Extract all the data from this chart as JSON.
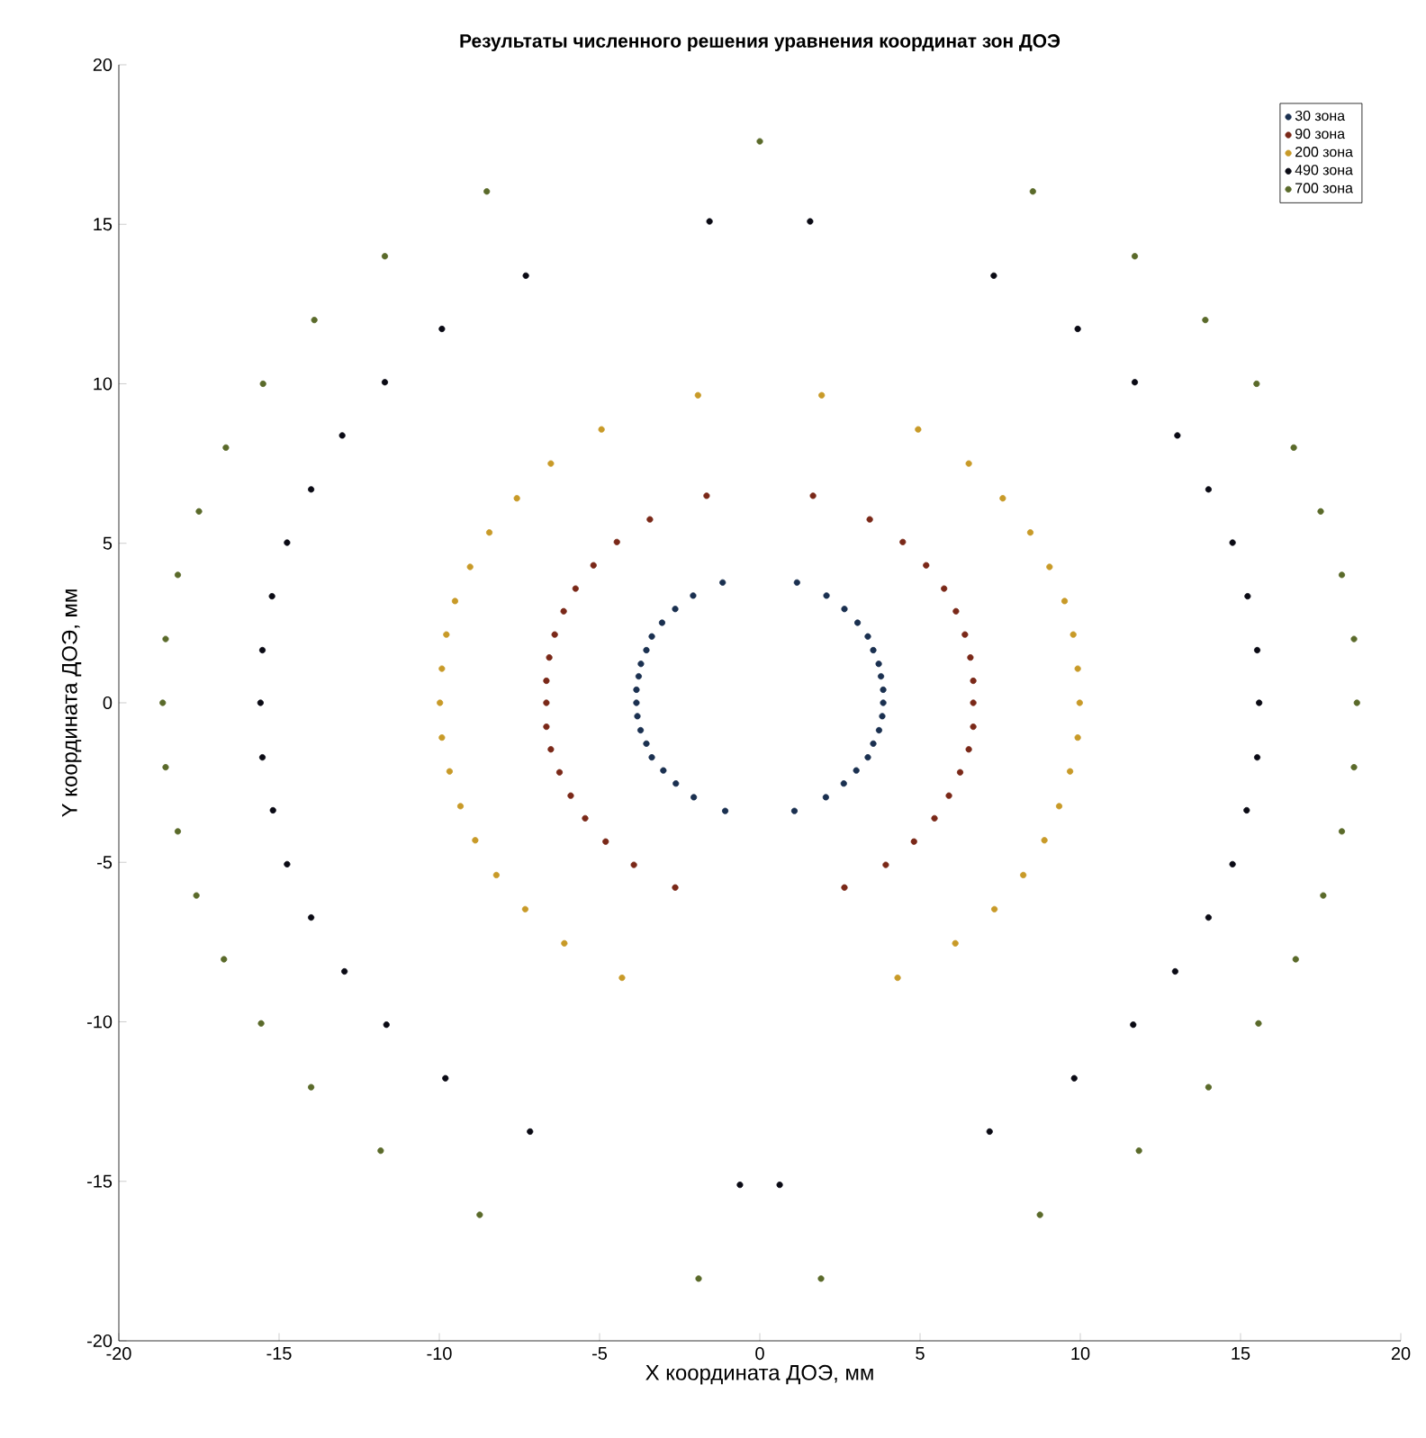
{
  "chart_data": {
    "type": "scatter",
    "title": "Результаты численного решения уравнения координат зон ДОЭ",
    "xlabel": "X координата ДОЭ, мм",
    "ylabel": "Y координата ДОЭ, мм",
    "xlim": [
      -20,
      20
    ],
    "ylim": [
      -20,
      20
    ],
    "xticks": [
      -20,
      -15,
      -10,
      -5,
      0,
      5,
      10,
      15,
      20
    ],
    "yticks": [
      -20,
      -15,
      -10,
      -5,
      0,
      5,
      10,
      15,
      20
    ],
    "legend": "top right",
    "marker": "circle",
    "series": [
      {
        "name": "30 зона",
        "color": "#1a3050",
        "x": [
          -1.16,
          -2.08,
          -2.64,
          -3.05,
          -3.37,
          -3.54,
          -3.71,
          -3.78,
          -3.85,
          -3.85,
          -3.82,
          -3.72,
          -3.54,
          -3.37,
          -3.01,
          -2.62,
          -2.06,
          -1.08,
          1.16,
          2.08,
          2.64,
          3.05,
          3.37,
          3.54,
          3.71,
          3.78,
          3.85,
          3.85,
          3.82,
          3.72,
          3.54,
          3.37,
          3.01,
          2.62,
          2.06,
          1.08
        ],
        "values": [
          3.77,
          3.36,
          2.94,
          2.51,
          2.08,
          1.65,
          1.22,
          0.83,
          0.41,
          0,
          -0.42,
          -0.86,
          -1.28,
          -1.71,
          -2.12,
          -2.53,
          -2.96,
          -3.39,
          3.77,
          3.36,
          2.94,
          2.51,
          2.08,
          1.65,
          1.22,
          0.83,
          0.41,
          0,
          -0.42,
          -0.86,
          -1.28,
          -1.71,
          -2.12,
          -2.53,
          -2.96,
          -3.39
        ]
      },
      {
        "name": "90 зона",
        "color": "#7a2818",
        "x": [
          -1.66,
          -3.43,
          -4.46,
          -5.19,
          -5.75,
          -6.12,
          -6.4,
          -6.57,
          -6.66,
          -6.66,
          -6.66,
          -6.52,
          -6.25,
          -5.9,
          -5.45,
          -4.81,
          -3.93,
          -2.64,
          1.66,
          3.43,
          4.46,
          5.19,
          5.75,
          6.12,
          6.4,
          6.57,
          6.66,
          6.66,
          6.66,
          6.52,
          6.25,
          5.9,
          5.45,
          4.81,
          3.93,
          2.64
        ],
        "values": [
          6.49,
          5.75,
          5.04,
          4.31,
          3.58,
          2.87,
          2.14,
          1.42,
          0.69,
          0,
          -0.75,
          -1.46,
          -2.18,
          -2.91,
          -3.62,
          -4.35,
          -5.08,
          -5.79,
          6.49,
          5.75,
          5.04,
          4.31,
          3.58,
          2.87,
          2.14,
          1.42,
          0.69,
          0,
          -0.75,
          -1.46,
          -2.18,
          -2.91,
          -3.62,
          -4.35,
          -5.08,
          -5.79
        ]
      },
      {
        "name": "200 зона",
        "color": "#c89a28",
        "x": [
          -1.93,
          -4.94,
          -6.52,
          -7.58,
          -8.44,
          -9.04,
          -9.51,
          -9.78,
          -9.92,
          -9.98,
          -9.92,
          -9.68,
          -9.34,
          -8.88,
          -8.22,
          -7.32,
          -6.1,
          -4.3,
          1.93,
          4.94,
          6.52,
          7.58,
          8.44,
          9.04,
          9.51,
          9.78,
          9.92,
          9.98,
          9.92,
          9.68,
          9.34,
          8.88,
          8.22,
          7.32,
          6.1,
          4.3
        ],
        "values": [
          9.64,
          8.57,
          7.5,
          6.41,
          5.34,
          4.26,
          3.19,
          2.14,
          1.07,
          0,
          -1.09,
          -2.15,
          -3.24,
          -4.31,
          -5.4,
          -6.47,
          -7.54,
          -8.62,
          9.64,
          8.57,
          7.5,
          6.41,
          5.34,
          4.26,
          3.19,
          2.14,
          1.07,
          0,
          -1.09,
          -2.15,
          -3.24,
          -4.31,
          -5.4,
          -6.47,
          -7.54,
          -8.62
        ]
      },
      {
        "name": "490 зона",
        "color": "#0a0a14",
        "x": [
          -1.57,
          -7.3,
          -9.92,
          -11.7,
          -13.03,
          -14.0,
          -14.75,
          -15.22,
          -15.52,
          -15.58,
          -15.52,
          -15.19,
          -14.75,
          -14.0,
          -12.96,
          -11.65,
          -9.81,
          -7.17,
          -0.62,
          1.57,
          7.3,
          9.92,
          11.7,
          13.03,
          14.0,
          14.75,
          15.22,
          15.52,
          15.58,
          15.52,
          15.19,
          14.75,
          14.0,
          12.96,
          11.65,
          9.81,
          7.17,
          0.62
        ],
        "values": [
          15.09,
          13.39,
          11.72,
          10.05,
          8.38,
          6.69,
          5.02,
          3.34,
          1.65,
          0,
          -1.71,
          -3.37,
          -5.06,
          -6.73,
          -8.42,
          -10.09,
          -11.77,
          -13.44,
          -15.11,
          15.09,
          13.39,
          11.72,
          10.05,
          8.38,
          6.69,
          5.02,
          3.34,
          1.65,
          0,
          -1.71,
          -3.37,
          -5.06,
          -6.73,
          -8.42,
          -10.09,
          -11.77,
          -13.44,
          -15.11
        ]
      },
      {
        "name": "700 зона",
        "color": "#5a6a2a",
        "x": [
          0,
          -8.52,
          -11.7,
          -13.9,
          -15.5,
          -16.66,
          -17.5,
          -18.16,
          -18.54,
          -18.63,
          -18.54,
          -18.16,
          -17.58,
          -16.72,
          -15.56,
          -14.0,
          -11.83,
          -8.74,
          -1.91,
          8.52,
          11.7,
          13.9,
          15.5,
          16.66,
          17.5,
          18.16,
          18.54,
          18.63,
          18.54,
          18.16,
          17.58,
          16.72,
          15.56,
          14.0,
          11.83,
          8.74,
          1.91
        ],
        "values": [
          17.6,
          16.03,
          14.0,
          12.0,
          10.0,
          8.0,
          6.0,
          4.01,
          2.0,
          0,
          -2.02,
          -4.03,
          -6.04,
          -8.04,
          -10.05,
          -12.05,
          -14.04,
          -16.05,
          -18.05,
          16.03,
          14.0,
          12.0,
          10.0,
          8.0,
          6.0,
          4.01,
          2.0,
          0,
          -2.02,
          -4.03,
          -6.04,
          -8.04,
          -10.05,
          -12.05,
          -14.04,
          -16.05,
          -18.05
        ]
      }
    ]
  }
}
